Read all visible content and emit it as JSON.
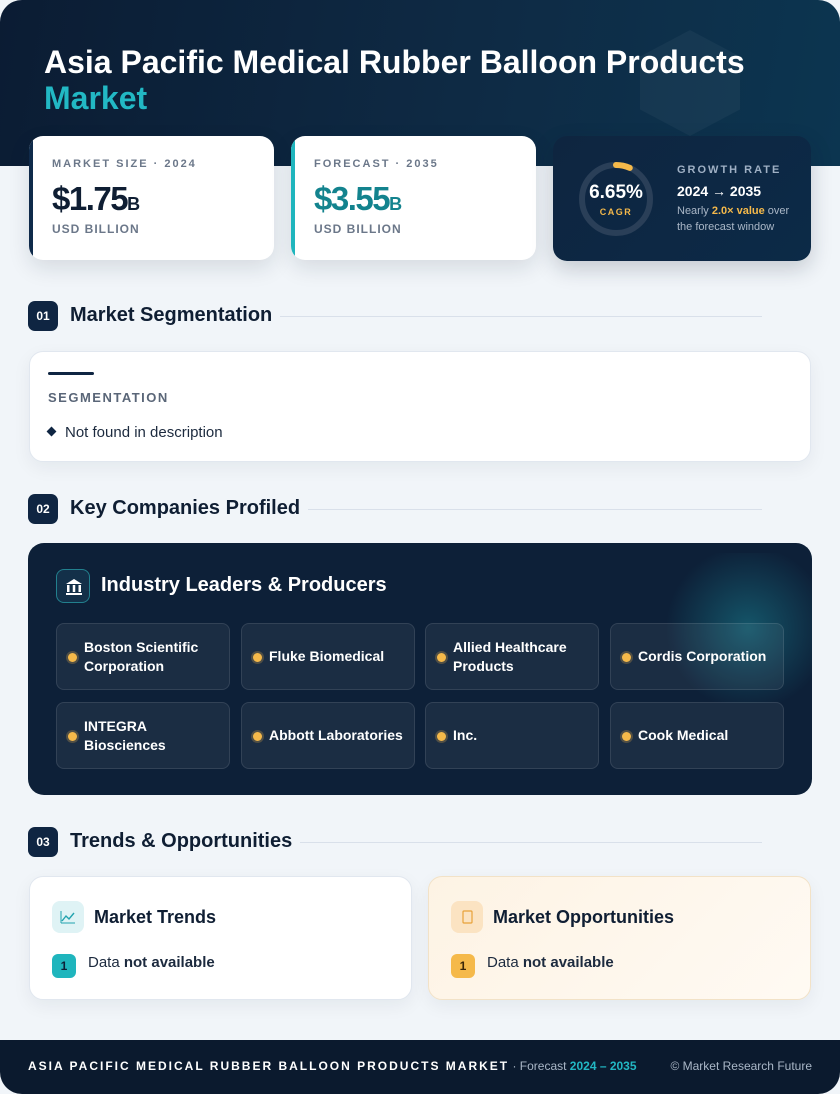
{
  "header": {
    "title": "Asia Pacific Medical Rubber Balloon Products",
    "title_accent": "Market"
  },
  "stats": {
    "market_size": {
      "label": "MARKET SIZE · 2024",
      "value": "$1.75",
      "suffix": "B",
      "unit": "USD BILLION"
    },
    "forecast": {
      "label": "FORECAST · 2035",
      "value": "$3.55",
      "suffix": "B",
      "unit": "USD BILLION"
    },
    "growth": {
      "cagr_value": "6.65%",
      "cagr_label": "CAGR",
      "cagr_ring_fraction": 0.0665,
      "label": "GROWTH RATE",
      "range": "2024 → 2035",
      "note_prefix": "Nearly ",
      "note_highlight": "2.0× value",
      "note_suffix": " over the forecast window"
    }
  },
  "sections": {
    "segmentation": {
      "num": "01",
      "title": "Market Segmentation"
    },
    "companies": {
      "num": "02",
      "title": "Key Companies Profiled"
    },
    "trends": {
      "num": "03",
      "title": "Trends & Opportunities"
    }
  },
  "segmentation": {
    "title": "SEGMENTATION",
    "items": [
      "Not found in description"
    ]
  },
  "companies": {
    "title": "Industry Leaders & Producers",
    "icon": "bank-icon",
    "items": [
      "Boston Scientific Corporation",
      "Fluke Biomedical",
      "Allied Healthcare Products",
      "Cordis Corporation",
      "INTEGRA Biosciences",
      "Abbott Laboratories",
      "Inc.",
      "Cook Medical"
    ]
  },
  "trends": {
    "market_trends": {
      "title": "Market Trends",
      "icon": "line-chart-icon",
      "num": "1",
      "text_prefix": "Data ",
      "text_bold": "not available"
    },
    "market_opportunities": {
      "title": "Market Opportunities",
      "icon": "tag-icon",
      "num": "1",
      "text_prefix": "Data ",
      "text_bold": "not available"
    }
  },
  "footer": {
    "brand": "ASIA PACIFIC MEDICAL RUBBER BALLOON PRODUCTS MARKET",
    "forecast_prefix": " · Forecast ",
    "forecast_years": "2024 – 2035",
    "copyright": "© Market Research Future"
  },
  "colors": {
    "navy": "#0f2542",
    "teal": "#1fb5bd",
    "amber": "#f5b94a"
  }
}
